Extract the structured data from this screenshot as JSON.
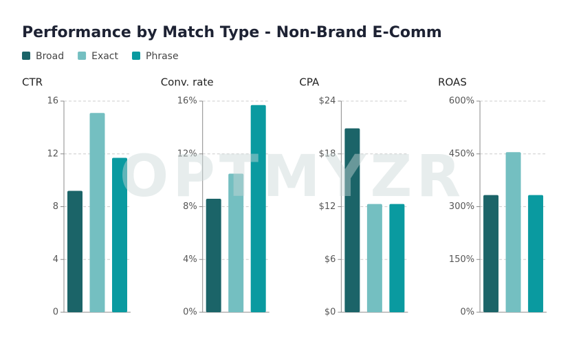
{
  "title": "Performance by Match Type - Non-Brand E-Comm",
  "watermark": "OPTMYZR",
  "legend": {
    "names": [
      "Broad",
      "Exact",
      "Phrase"
    ],
    "colors": [
      "#1b6468",
      "#74bfc1",
      "#0a9aa0"
    ]
  },
  "chart_data": [
    {
      "type": "bar",
      "title": "CTR",
      "values": [
        9.2,
        15.1,
        11.7
      ],
      "ylim": [
        0,
        16
      ],
      "yticks": [
        0,
        4,
        8,
        12,
        16
      ],
      "grid": true
    },
    {
      "type": "bar",
      "title": "Conv. rate",
      "values": [
        8.6,
        10.5,
        15.7
      ],
      "ylim": [
        0,
        16
      ],
      "yticks": [
        {
          "value": 0,
          "label": "0%"
        },
        {
          "value": 4,
          "label": "4%"
        },
        {
          "value": 8,
          "label": "8%"
        },
        {
          "value": 12,
          "label": "12%"
        },
        {
          "value": 16,
          "label": "16%"
        }
      ],
      "grid": true
    },
    {
      "type": "bar",
      "title": "CPA",
      "values": [
        20.9,
        12.3,
        12.3
      ],
      "ylim": [
        0,
        24
      ],
      "yticks": [
        {
          "value": 0,
          "label": "$0"
        },
        {
          "value": 6,
          "label": "$6"
        },
        {
          "value": 12,
          "label": "$12"
        },
        {
          "value": 18,
          "label": "$18"
        },
        {
          "value": 24,
          "label": "$24"
        }
      ],
      "grid": true
    },
    {
      "type": "bar",
      "title": "ROAS",
      "values": [
        333,
        455,
        333
      ],
      "ylim": [
        0,
        600
      ],
      "yticks": [
        {
          "value": 0,
          "label": "0%"
        },
        {
          "value": 150,
          "label": "150%"
        },
        {
          "value": 300,
          "label": "300%"
        },
        {
          "value": 450,
          "label": "450%"
        },
        {
          "value": 600,
          "label": "600%"
        }
      ],
      "grid": true
    }
  ]
}
